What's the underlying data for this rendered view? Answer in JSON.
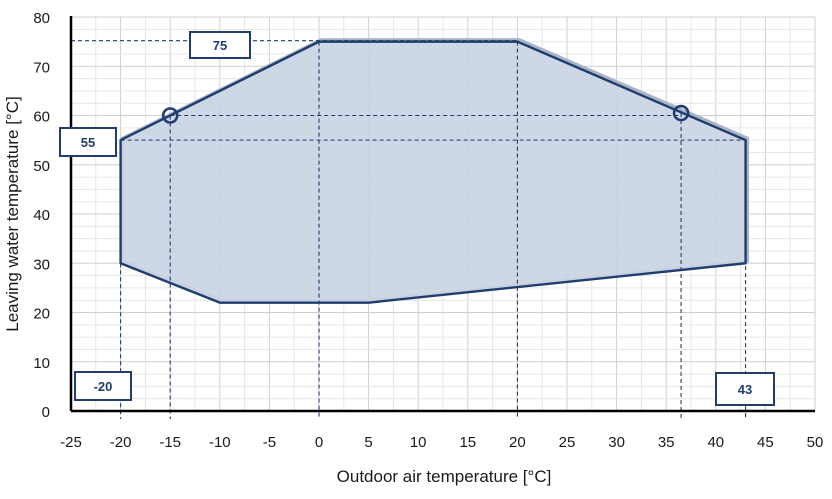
{
  "chart_data": {
    "type": "area",
    "xlabel": "Outdoor air temperature [°C]",
    "ylabel": "Leaving water temperature [°C]",
    "xlim": [
      -25,
      50
    ],
    "ylim": [
      0,
      80
    ],
    "x_ticks": [
      "-25",
      "-20",
      "-15",
      "-10",
      "-5",
      "0",
      "5",
      "10",
      "15",
      "20",
      "25",
      "30",
      "35",
      "40",
      "45",
      "50"
    ],
    "y_ticks": [
      "0",
      "10",
      "20",
      "30",
      "40",
      "50",
      "60",
      "70",
      "80"
    ],
    "grid": true,
    "envelope": [
      {
        "x": -20,
        "y": 30
      },
      {
        "x": -20,
        "y": 55
      },
      {
        "x": 0,
        "y": 75
      },
      {
        "x": 20,
        "y": 75
      },
      {
        "x": 43,
        "y": 55
      },
      {
        "x": 43,
        "y": 30
      },
      {
        "x": 5,
        "y": 22
      },
      {
        "x": -10,
        "y": 22
      }
    ],
    "markers": [
      {
        "x": -15,
        "y": 60
      },
      {
        "x": 36.5,
        "y": 60.5
      }
    ],
    "annotations": [
      "75",
      "55",
      "-20",
      "43"
    ],
    "colors": {
      "fill": "#c9d3e2",
      "line": "#1f3d6e",
      "grid": "#d9d9d9",
      "axis": "#000000"
    }
  }
}
